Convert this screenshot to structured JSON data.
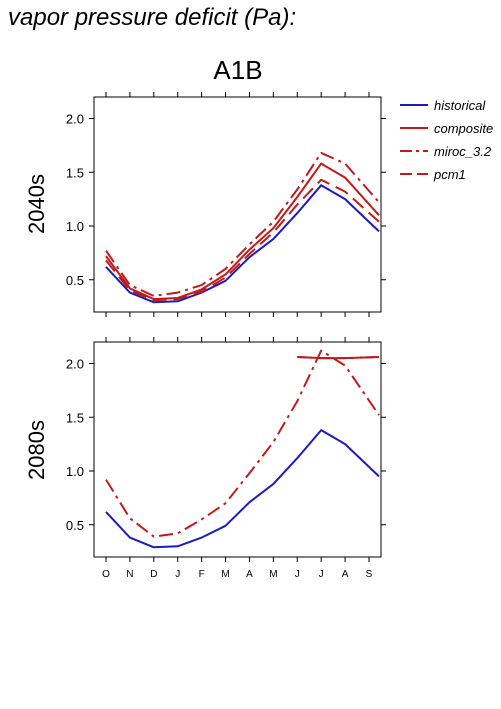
{
  "title": "vapor pressure deficit (Pa):",
  "scenario": "A1B",
  "legend": {
    "position": "top-right",
    "entries": [
      {
        "label": "historical",
        "color": "#1b1bbf",
        "style": "solid"
      },
      {
        "label": "composite",
        "color": "#bf1b1b",
        "style": "solid"
      },
      {
        "label": "miroc_3.2",
        "color": "#bf1b1b",
        "style": "dashdot"
      },
      {
        "label": "pcm1",
        "color": "#bf1b1b",
        "style": "dashed"
      }
    ]
  },
  "chart_data": [
    {
      "type": "line",
      "panel_label": "2040s",
      "categories": [
        "O",
        "N",
        "D",
        "J",
        "F",
        "M",
        "A",
        "M",
        "J",
        "J",
        "A",
        "S"
      ],
      "yticks": [
        0.5,
        1.0,
        1.5,
        2.0
      ],
      "ylim": [
        0.2,
        2.2
      ],
      "series": [
        {
          "name": "historical",
          "color": "#1b1bbf",
          "style": "solid",
          "values": [
            0.62,
            0.38,
            0.29,
            0.3,
            0.38,
            0.49,
            0.71,
            0.88,
            1.12,
            1.38,
            1.25,
            0.95
          ]
        },
        {
          "name": "composite",
          "color": "#bf1b1b",
          "style": "solid",
          "values": [
            0.72,
            0.42,
            0.32,
            0.33,
            0.41,
            0.55,
            0.78,
            0.98,
            1.27,
            1.58,
            1.45,
            1.1
          ]
        },
        {
          "name": "miroc_3.2",
          "color": "#bf1b1b",
          "style": "dashdot",
          "values": [
            0.77,
            0.45,
            0.35,
            0.38,
            0.45,
            0.6,
            0.83,
            1.04,
            1.34,
            1.68,
            1.58,
            1.22
          ]
        },
        {
          "name": "pcm1",
          "color": "#bf1b1b",
          "style": "dashed",
          "values": [
            0.68,
            0.4,
            0.31,
            0.32,
            0.39,
            0.52,
            0.74,
            0.94,
            1.2,
            1.43,
            1.32,
            1.04
          ]
        }
      ]
    },
    {
      "type": "line",
      "panel_label": "2080s",
      "categories": [
        "O",
        "N",
        "D",
        "J",
        "F",
        "M",
        "A",
        "M",
        "J",
        "J",
        "A",
        "S"
      ],
      "yticks": [
        0.5,
        1.0,
        1.5,
        2.0
      ],
      "ylim": [
        0.2,
        2.2
      ],
      "series": [
        {
          "name": "historical",
          "color": "#1b1bbf",
          "style": "solid",
          "values": [
            0.62,
            0.38,
            0.29,
            0.3,
            0.38,
            0.49,
            0.71,
            0.88,
            1.12,
            1.38,
            1.25,
            0.95
          ]
        },
        {
          "name": "composite",
          "color": "#bf1b1b",
          "style": "solid",
          "values": [
            null,
            null,
            null,
            null,
            null,
            null,
            null,
            null,
            2.06,
            2.05,
            2.05,
            2.06
          ]
        },
        {
          "name": "miroc_3.2",
          "color": "#bf1b1b",
          "style": "dashdot",
          "values": [
            0.92,
            0.56,
            0.39,
            0.42,
            0.55,
            0.7,
            0.98,
            1.27,
            1.65,
            2.12,
            1.98,
            1.52
          ]
        },
        {
          "name": "pcm1",
          "color": "#bf1b1b",
          "style": "dashed",
          "values": [
            null,
            null,
            null,
            null,
            null,
            null,
            null,
            null,
            2.06,
            2.05,
            2.05,
            2.06
          ]
        }
      ]
    }
  ]
}
